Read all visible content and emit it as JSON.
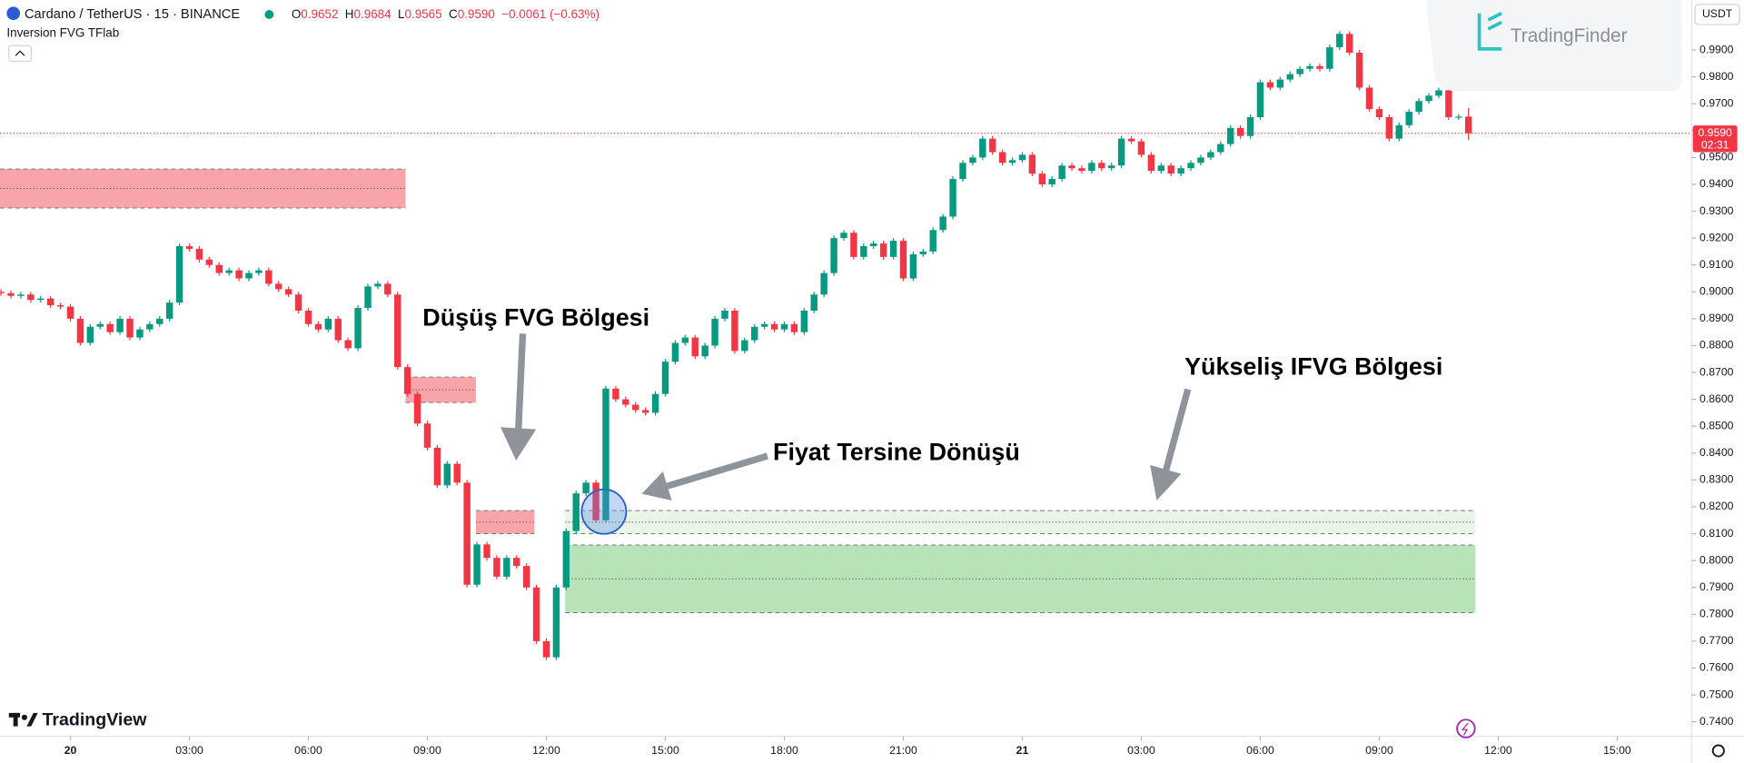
{
  "header": {
    "symbol": "Cardano / TetherUS · 15 · BINANCE",
    "indicator": "Inversion FVG TFlab",
    "ohlc": [
      {
        "key": "O",
        "value": "0.9652"
      },
      {
        "key": "H",
        "value": "0.9684"
      },
      {
        "key": "L",
        "value": "0.9565"
      },
      {
        "key": "C",
        "value": "0.9590"
      }
    ],
    "change": "−0.0061 (−0.63%)",
    "currency": "USDT",
    "brand": "TradingFinder",
    "platform": "TradingView"
  },
  "chart_data": {
    "type": "candlestick",
    "annotations": [
      {
        "text": "Düşüş FVG Bölgesi"
      },
      {
        "text": "Yükseliş IFVG Bölgesi"
      },
      {
        "text": "Fiyat Tersine Dönüşü"
      }
    ],
    "up_color": "#089981",
    "down_color": "#f23645",
    "open": [
      0.9,
      0.8995,
      0.8985,
      0.899,
      0.897,
      0.8975,
      0.895,
      0.8945,
      0.89,
      0.881,
      0.887,
      0.888,
      0.885,
      0.89,
      0.883,
      0.886,
      0.888,
      0.89,
      0.896,
      0.917,
      0.916,
      0.912,
      0.91,
      0.907,
      0.908,
      0.905,
      0.907,
      0.908,
      0.903,
      0.901,
      0.899,
      0.893,
      0.888,
      0.886,
      0.89,
      0.882,
      0.879,
      0.894,
      0.902,
      0.903,
      0.899,
      0.872,
      0.862,
      0.851,
      0.842,
      0.828,
      0.836,
      0.829,
      0.791,
      0.806,
      0.801,
      0.794,
      0.801,
      0.798,
      0.79,
      0.77,
      0.764,
      0.79,
      0.811,
      0.825,
      0.829,
      0.815,
      0.864,
      0.86,
      0.858,
      0.856,
      0.855,
      0.862,
      0.874,
      0.881,
      0.883,
      0.876,
      0.88,
      0.89,
      0.893,
      0.878,
      0.882,
      0.887,
      0.888,
      0.886,
      0.888,
      0.885,
      0.893,
      0.899,
      0.907,
      0.92,
      0.922,
      0.913,
      0.917,
      0.918,
      0.913,
      0.919,
      0.905,
      0.914,
      0.915,
      0.923,
      0.928,
      0.942,
      0.948,
      0.95,
      0.957,
      0.952,
      0.948,
      0.949,
      0.951,
      0.944,
      0.94,
      0.942,
      0.947,
      0.946,
      0.945,
      0.948,
      0.946,
      0.947,
      0.957,
      0.956,
      0.951,
      0.945,
      0.947,
      0.944,
      0.946,
      0.948,
      0.95,
      0.952,
      0.955,
      0.961,
      0.958,
      0.965,
      0.978,
      0.976,
      0.979,
      0.981,
      0.983,
      0.984,
      0.983,
      0.991,
      0.996,
      0.989,
      0.976,
      0.968,
      0.965,
      0.957,
      0.962,
      0.967,
      0.971,
      0.973,
      0.975,
      0.965,
      0.9652
    ],
    "high": [
      0.901,
      0.9005,
      0.9,
      0.9,
      0.8985,
      0.8985,
      0.896,
      0.8955,
      0.891,
      0.888,
      0.889,
      0.889,
      0.891,
      0.891,
      0.887,
      0.889,
      0.891,
      0.897,
      0.918,
      0.918,
      0.917,
      0.913,
      0.911,
      0.909,
      0.909,
      0.908,
      0.909,
      0.909,
      0.904,
      0.902,
      0.9,
      0.894,
      0.889,
      0.891,
      0.891,
      0.883,
      0.895,
      0.903,
      0.904,
      0.904,
      0.9,
      0.873,
      0.863,
      0.852,
      0.843,
      0.837,
      0.837,
      0.83,
      0.807,
      0.807,
      0.802,
      0.802,
      0.802,
      0.799,
      0.791,
      0.771,
      0.791,
      0.812,
      0.826,
      0.83,
      0.83,
      0.865,
      0.865,
      0.861,
      0.859,
      0.857,
      0.863,
      0.875,
      0.882,
      0.884,
      0.884,
      0.881,
      0.891,
      0.894,
      0.894,
      0.883,
      0.888,
      0.889,
      0.889,
      0.889,
      0.889,
      0.894,
      0.9,
      0.908,
      0.921,
      0.923,
      0.923,
      0.918,
      0.919,
      0.919,
      0.92,
      0.92,
      0.915,
      0.916,
      0.924,
      0.929,
      0.943,
      0.949,
      0.951,
      0.958,
      0.958,
      0.953,
      0.95,
      0.952,
      0.952,
      0.945,
      0.943,
      0.948,
      0.948,
      0.947,
      0.949,
      0.949,
      0.948,
      0.958,
      0.958,
      0.957,
      0.952,
      0.948,
      0.948,
      0.947,
      0.949,
      0.951,
      0.953,
      0.956,
      0.962,
      0.962,
      0.966,
      0.979,
      0.979,
      0.98,
      0.982,
      0.984,
      0.985,
      0.985,
      0.992,
      0.997,
      0.997,
      0.99,
      0.977,
      0.969,
      0.966,
      0.963,
      0.968,
      0.972,
      0.974,
      0.976,
      0.976,
      0.9662,
      0.9684
    ],
    "low": [
      0.8985,
      0.8975,
      0.8975,
      0.896,
      0.896,
      0.894,
      0.8935,
      0.889,
      0.88,
      0.88,
      0.886,
      0.884,
      0.884,
      0.882,
      0.882,
      0.885,
      0.887,
      0.889,
      0.895,
      0.915,
      0.911,
      0.909,
      0.906,
      0.906,
      0.904,
      0.904,
      0.906,
      0.902,
      0.9,
      0.898,
      0.892,
      0.887,
      0.885,
      0.885,
      0.881,
      0.878,
      0.878,
      0.893,
      0.901,
      0.898,
      0.871,
      0.861,
      0.85,
      0.841,
      0.827,
      0.827,
      0.828,
      0.79,
      0.79,
      0.8,
      0.793,
      0.793,
      0.797,
      0.789,
      0.769,
      0.763,
      0.763,
      0.789,
      0.81,
      0.824,
      0.814,
      0.814,
      0.859,
      0.857,
      0.855,
      0.854,
      0.854,
      0.861,
      0.873,
      0.88,
      0.875,
      0.875,
      0.879,
      0.889,
      0.877,
      0.877,
      0.881,
      0.886,
      0.885,
      0.885,
      0.884,
      0.884,
      0.892,
      0.898,
      0.906,
      0.919,
      0.912,
      0.912,
      0.916,
      0.912,
      0.912,
      0.904,
      0.904,
      0.913,
      0.914,
      0.922,
      0.927,
      0.941,
      0.947,
      0.949,
      0.951,
      0.947,
      0.947,
      0.948,
      0.943,
      0.939,
      0.939,
      0.941,
      0.945,
      0.944,
      0.944,
      0.945,
      0.945,
      0.946,
      0.955,
      0.95,
      0.944,
      0.944,
      0.943,
      0.943,
      0.945,
      0.947,
      0.949,
      0.951,
      0.954,
      0.957,
      0.957,
      0.964,
      0.975,
      0.975,
      0.978,
      0.98,
      0.982,
      0.982,
      0.982,
      0.99,
      0.988,
      0.975,
      0.967,
      0.964,
      0.956,
      0.956,
      0.961,
      0.966,
      0.97,
      0.972,
      0.964,
      0.964,
      0.9565
    ],
    "close": [
      0.8995,
      0.8985,
      0.899,
      0.897,
      0.8975,
      0.895,
      0.8945,
      0.89,
      0.881,
      0.887,
      0.888,
      0.885,
      0.89,
      0.883,
      0.886,
      0.888,
      0.89,
      0.896,
      0.917,
      0.916,
      0.912,
      0.91,
      0.907,
      0.908,
      0.905,
      0.907,
      0.908,
      0.903,
      0.901,
      0.899,
      0.893,
      0.888,
      0.886,
      0.89,
      0.882,
      0.879,
      0.894,
      0.902,
      0.903,
      0.899,
      0.872,
      0.862,
      0.851,
      0.842,
      0.828,
      0.836,
      0.829,
      0.791,
      0.806,
      0.801,
      0.794,
      0.801,
      0.798,
      0.79,
      0.77,
      0.764,
      0.79,
      0.811,
      0.825,
      0.829,
      0.815,
      0.864,
      0.86,
      0.858,
      0.856,
      0.855,
      0.862,
      0.874,
      0.881,
      0.883,
      0.876,
      0.88,
      0.89,
      0.893,
      0.878,
      0.882,
      0.887,
      0.888,
      0.886,
      0.888,
      0.885,
      0.893,
      0.899,
      0.907,
      0.92,
      0.922,
      0.913,
      0.917,
      0.918,
      0.913,
      0.919,
      0.905,
      0.914,
      0.915,
      0.923,
      0.928,
      0.942,
      0.948,
      0.95,
      0.957,
      0.952,
      0.948,
      0.949,
      0.951,
      0.944,
      0.94,
      0.942,
      0.947,
      0.946,
      0.945,
      0.948,
      0.946,
      0.947,
      0.957,
      0.956,
      0.951,
      0.945,
      0.947,
      0.944,
      0.946,
      0.948,
      0.95,
      0.952,
      0.955,
      0.961,
      0.958,
      0.965,
      0.978,
      0.976,
      0.979,
      0.981,
      0.983,
      0.984,
      0.983,
      0.991,
      0.996,
      0.989,
      0.976,
      0.968,
      0.965,
      0.957,
      0.962,
      0.967,
      0.971,
      0.973,
      0.975,
      0.965,
      0.9652,
      0.959
    ],
    "zones": [
      {
        "start": -0.1,
        "end": 40.8,
        "top": 0.9457,
        "bottom": 0.9312,
        "color": "#f8a4a9"
      },
      {
        "start": 40.8,
        "end": 47.9,
        "top": 0.8683,
        "bottom": 0.8588,
        "color": "#f8a4a9"
      },
      {
        "start": 47.9,
        "end": 53.8,
        "top": 0.8186,
        "bottom": 0.81,
        "color": "#f8a4a9"
      },
      {
        "start": 56.9,
        "end": 148.7,
        "top": 0.8186,
        "bottom": 0.81,
        "color": "#e8f5e8"
      },
      {
        "start": 56.9,
        "end": 148.7,
        "top": 0.8058,
        "bottom": 0.7806,
        "color": "#b8e2b8"
      }
    ],
    "last_price": {
      "value": 0.959,
      "label": "0.9590"
    },
    "countdown": "02:31",
    "last_color": "#f23645",
    "xlim": [
      -0.1,
      170.4
    ],
    "xticks": [
      {
        "value": 7,
        "label": "20"
      },
      {
        "value": 19,
        "label": "03:00"
      },
      {
        "value": 31,
        "label": "06:00"
      },
      {
        "value": 43,
        "label": "09:00"
      },
      {
        "value": 55,
        "label": "12:00"
      },
      {
        "value": 67,
        "label": "15:00"
      },
      {
        "value": 79,
        "label": "18:00"
      },
      {
        "value": 91,
        "label": "21:00"
      },
      {
        "value": 103,
        "label": "21"
      },
      {
        "value": 115,
        "label": "03:00"
      },
      {
        "value": 127,
        "label": "06:00"
      },
      {
        "value": 139,
        "label": "09:00"
      },
      {
        "value": 151,
        "label": "12:00"
      },
      {
        "value": 163,
        "label": "15:00"
      }
    ],
    "ylim": [
      0.7346,
      1.0086
    ],
    "yticks": [
      {
        "value": 0.74,
        "label": "0.7400"
      },
      {
        "value": 0.75,
        "label": "0.7500"
      },
      {
        "value": 0.76,
        "label": "0.7600"
      },
      {
        "value": 0.77,
        "label": "0.7700"
      },
      {
        "value": 0.78,
        "label": "0.7800"
      },
      {
        "value": 0.79,
        "label": "0.7900"
      },
      {
        "value": 0.8,
        "label": "0.8000"
      },
      {
        "value": 0.81,
        "label": "0.8100"
      },
      {
        "value": 0.82,
        "label": "0.8200"
      },
      {
        "value": 0.83,
        "label": "0.8300"
      },
      {
        "value": 0.84,
        "label": "0.8400"
      },
      {
        "value": 0.85,
        "label": "0.8500"
      },
      {
        "value": 0.86,
        "label": "0.8600"
      },
      {
        "value": 0.87,
        "label": "0.8700"
      },
      {
        "value": 0.88,
        "label": "0.8800"
      },
      {
        "value": 0.89,
        "label": "0.8900"
      },
      {
        "value": 0.9,
        "label": "0.9000"
      },
      {
        "value": 0.91,
        "label": "0.9100"
      },
      {
        "value": 0.92,
        "label": "0.9200"
      },
      {
        "value": 0.93,
        "label": "0.9300"
      },
      {
        "value": 0.94,
        "label": "0.9400"
      },
      {
        "value": 0.95,
        "label": "0.9500"
      },
      {
        "value": 0.96,
        "label": "0.9600"
      },
      {
        "value": 0.97,
        "label": "0.9700"
      },
      {
        "value": 0.98,
        "label": "0.9800"
      },
      {
        "value": 0.99,
        "label": "0.9900"
      }
    ]
  }
}
